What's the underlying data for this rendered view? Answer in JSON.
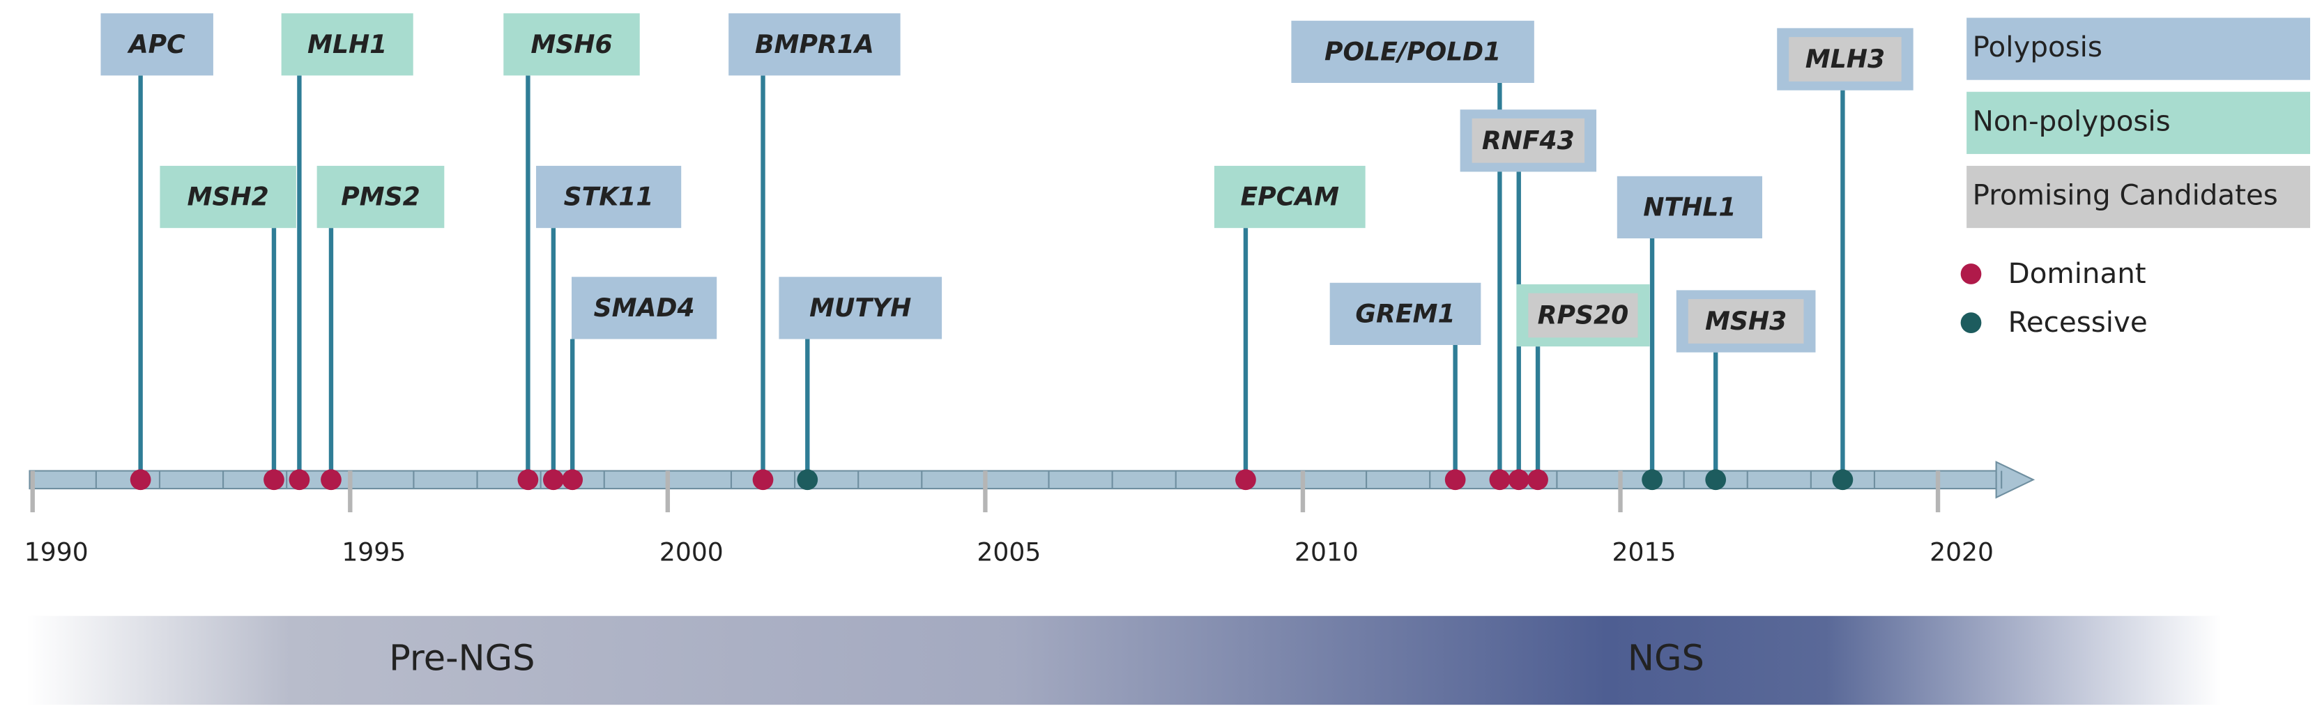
{
  "chart_data": {
    "type": "timeline",
    "xlim": [
      1990,
      2021.5
    ],
    "xticks": [
      1990,
      1995,
      2000,
      2005,
      2010,
      2015,
      2020
    ],
    "groups": [
      {
        "name": "Polyposis",
        "color": "#a9c3da"
      },
      {
        "name": "Non-polyposis",
        "color": "#a8dccf"
      },
      {
        "name": "Promising Candidates",
        "color": "#cbcbcb"
      }
    ],
    "inheritance": [
      {
        "name": "Dominant",
        "color": "#b01a4a"
      },
      {
        "name": "Recessive",
        "color": "#1d5c5e"
      }
    ],
    "events": [
      {
        "label": "APC",
        "x": 1991.7,
        "group": "Polyposis",
        "inheritance": "Dominant",
        "candidate": false
      },
      {
        "label": "MSH2",
        "x": 1993.8,
        "group": "Non-polyposis",
        "inheritance": "Dominant",
        "candidate": false
      },
      {
        "label": "MLH1",
        "x": 1994.2,
        "group": "Non-polyposis",
        "inheritance": "Dominant",
        "candidate": false
      },
      {
        "label": "PMS2",
        "x": 1994.7,
        "group": "Non-polyposis",
        "inheritance": "Dominant",
        "candidate": false
      },
      {
        "label": "MSH6",
        "x": 1997.8,
        "group": "Non-polyposis",
        "inheritance": "Dominant",
        "candidate": false
      },
      {
        "label": "STK11",
        "x": 1998.2,
        "group": "Polyposis",
        "inheritance": "Dominant",
        "candidate": false
      },
      {
        "label": "SMAD4",
        "x": 1998.5,
        "group": "Polyposis",
        "inheritance": "Dominant",
        "candidate": false
      },
      {
        "label": "BMPR1A",
        "x": 2001.5,
        "group": "Polyposis",
        "inheritance": "Dominant",
        "candidate": false
      },
      {
        "label": "MUTYH",
        "x": 2002.2,
        "group": "Polyposis",
        "inheritance": "Recessive",
        "candidate": false
      },
      {
        "label": "EPCAM",
        "x": 2009.1,
        "group": "Non-polyposis",
        "inheritance": "Dominant",
        "candidate": false
      },
      {
        "label": "GREM1",
        "x": 2012.4,
        "group": "Polyposis",
        "inheritance": "Dominant",
        "candidate": false
      },
      {
        "label": "POLE/POLD1",
        "x": 2013.1,
        "group": "Polyposis",
        "inheritance": "Dominant",
        "candidate": false
      },
      {
        "label": "RNF43",
        "x": 2013.4,
        "group": "Polyposis",
        "inheritance": "Dominant",
        "candidate": true
      },
      {
        "label": "RPS20",
        "x": 2013.7,
        "group": "Non-polyposis",
        "inheritance": "Dominant",
        "candidate": true
      },
      {
        "label": "NTHL1",
        "x": 2015.5,
        "group": "Polyposis",
        "inheritance": "Recessive",
        "candidate": false
      },
      {
        "label": "MSH3",
        "x": 2016.5,
        "group": "Polyposis",
        "inheritance": "Recessive",
        "candidate": true
      },
      {
        "label": "MLH3",
        "x": 2018.5,
        "group": "Polyposis",
        "inheritance": "Recessive",
        "candidate": true
      }
    ],
    "periods": [
      "Pre-NGS",
      "NGS"
    ]
  }
}
